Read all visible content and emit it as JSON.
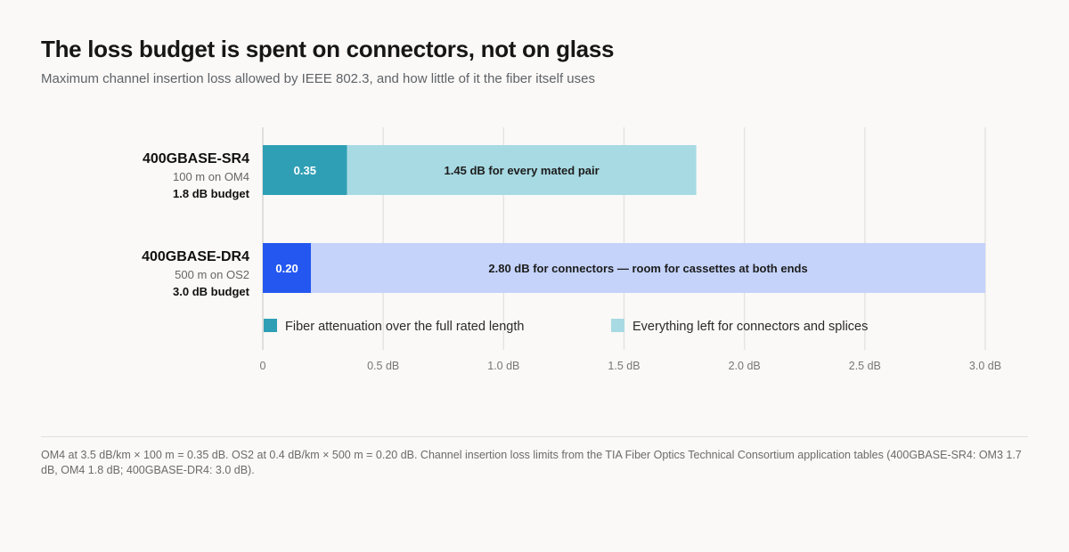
{
  "header": {
    "title": "The loss budget is spent on connectors, not on glass",
    "subtitle": "Maximum channel insertion loss allowed by IEEE 802.3, and how little of it the fiber itself uses"
  },
  "chart_data": {
    "type": "bar",
    "orientation": "horizontal",
    "stacked": true,
    "categories": [
      {
        "name": "400GBASE-SR4",
        "detail": "100 m on OM4",
        "budget_label": "1.8 dB budget"
      },
      {
        "name": "400GBASE-DR4",
        "detail": "500 m on OS2",
        "budget_label": "3.0 dB budget"
      }
    ],
    "series": [
      {
        "name": "Fiber attenuation over the full rated length",
        "colors": [
          "#2f9fb5",
          "#2357f0"
        ],
        "values": [
          0.35,
          0.2
        ],
        "labels": [
          "0.35",
          "0.20"
        ]
      },
      {
        "name": "Everything left for connectors and splices",
        "colors": [
          "#a8dae3",
          "#c5d3fb"
        ],
        "values": [
          1.45,
          2.8
        ],
        "labels": [
          "1.45 dB for every mated pair",
          "2.80 dB for connectors — room for cassettes at both ends"
        ]
      }
    ],
    "xlim": [
      0,
      3.0
    ],
    "ticks": [
      {
        "value": 0,
        "label": "0"
      },
      {
        "value": 0.5,
        "label": "0.5 dB"
      },
      {
        "value": 1.0,
        "label": "1.0 dB"
      },
      {
        "value": 1.5,
        "label": "1.5 dB"
      },
      {
        "value": 2.0,
        "label": "2.0 dB"
      },
      {
        "value": 2.5,
        "label": "2.5 dB"
      },
      {
        "value": 3.0,
        "label": "3.0 dB"
      }
    ],
    "grid": true,
    "legend_position": "bottom-inside"
  },
  "footnote": "OM4 at 3.5 dB/km × 100 m = 0.35 dB. OS2 at 0.4 dB/km × 500 m = 0.20 dB. Channel insertion loss limits from the TIA Fiber Optics Technical Consortium application tables (400GBASE-SR4: OM3 1.7 dB, OM4 1.8 dB; 400GBASE-DR4: 3.0 dB)."
}
